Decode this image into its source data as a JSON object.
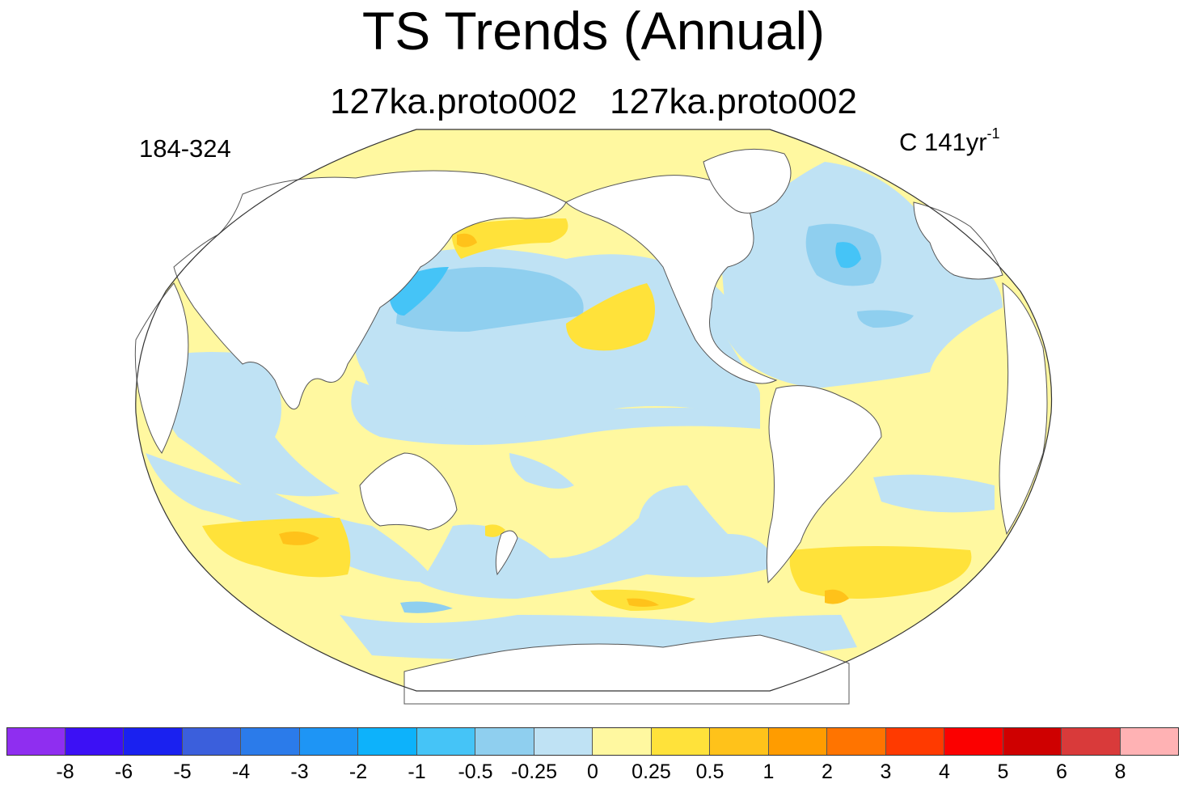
{
  "figure": {
    "title": "TS Trends (Annual)",
    "subtitle_left": "127ka.proto002",
    "subtitle_right": "127ka.proto002",
    "years_label": "184-324",
    "units_label": "C 141yr",
    "units_exponent": "-1",
    "projection": "Robinson-like global, Pacific-centered"
  },
  "colorbar": {
    "colors": [
      "#8f2ef0",
      "#3c10f5",
      "#1a21f0",
      "#3b5fdc",
      "#2b7bea",
      "#1e95f5",
      "#0db2fb",
      "#45c4f7",
      "#8fcfef",
      "#bfe2f4",
      "#fff8a0",
      "#ffe23a",
      "#ffc21a",
      "#ff9c00",
      "#ff7400",
      "#ff3a00",
      "#fb0000",
      "#cf0000",
      "#d93a3a",
      "#ffb2b4"
    ],
    "labels": [
      "-8",
      "-6",
      "-5",
      "-4",
      "-3",
      "-2",
      "-1",
      "-0.5",
      "-0.25",
      "0",
      "0.25",
      "0.5",
      "1",
      "2",
      "3",
      "4",
      "5",
      "6",
      "8"
    ]
  }
}
